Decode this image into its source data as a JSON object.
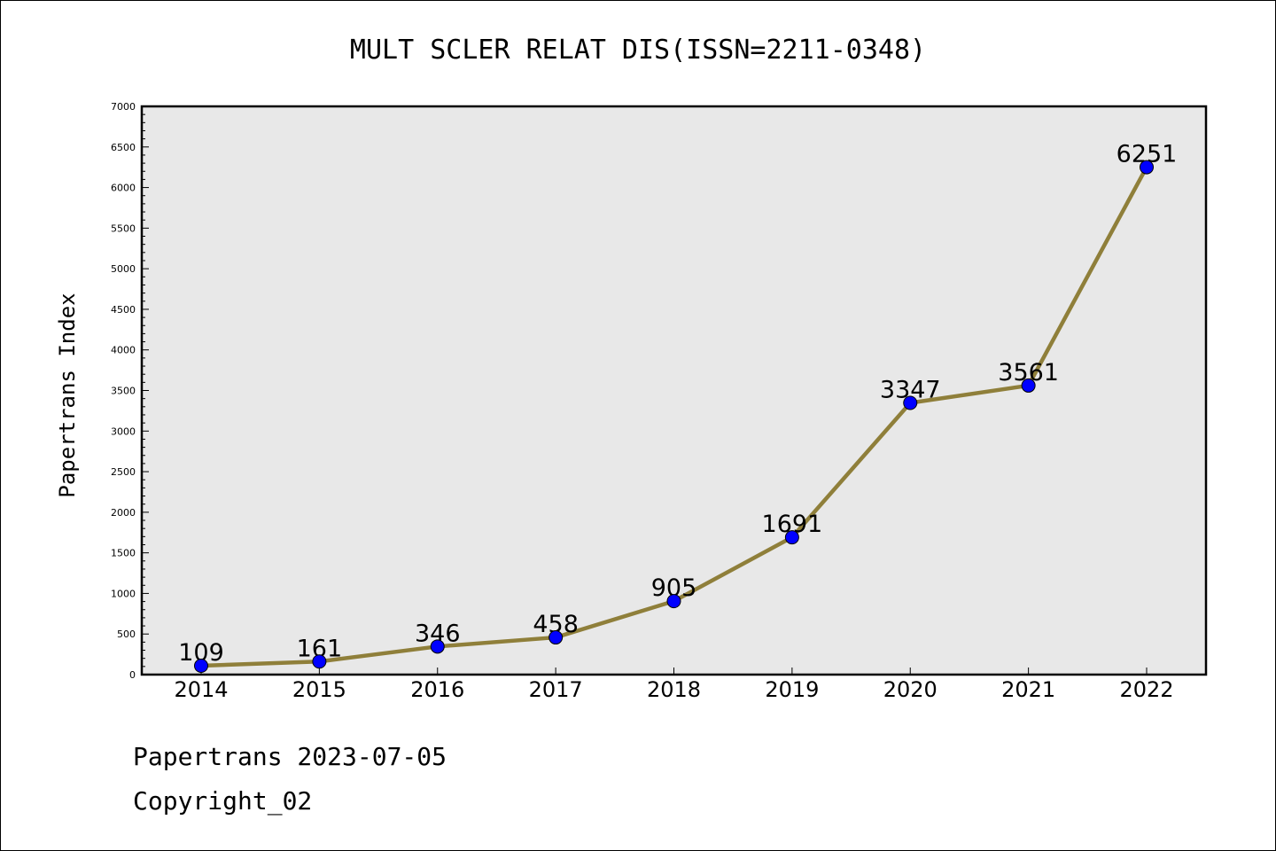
{
  "chart_data": {
    "type": "line",
    "title": "MULT SCLER RELAT DIS(ISSN=2211-0348)",
    "xlabel": "",
    "ylabel": "Papertrans Index",
    "categories": [
      "2014",
      "2015",
      "2016",
      "2017",
      "2018",
      "2019",
      "2020",
      "2021",
      "2022"
    ],
    "values": [
      109,
      161,
      346,
      458,
      905,
      1691,
      3347,
      3561,
      6251
    ],
    "data_labels": [
      "109",
      "161",
      "346",
      "458",
      "905",
      "1691",
      "3347",
      "3561",
      "6251"
    ],
    "ylim": [
      0,
      7000
    ],
    "yticks": [
      "0",
      "500",
      "1000",
      "1500",
      "2000",
      "2500",
      "3000",
      "3500",
      "4000",
      "4500",
      "5000",
      "5500",
      "6000",
      "6500",
      "7000"
    ],
    "grid": false,
    "line_color": "#8f7f3a",
    "marker_color": "#0000ff",
    "plot_background": "#e8e8e8"
  },
  "footer": {
    "line1": "Papertrans 2023-07-05",
    "line2": "Copyright_02"
  }
}
